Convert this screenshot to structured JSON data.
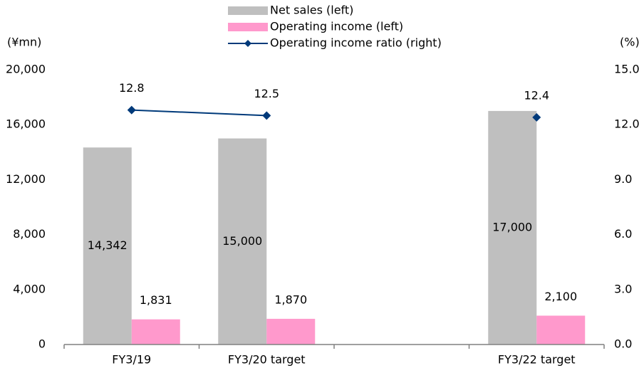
{
  "chart_data": {
    "type": "bar",
    "y_label": "(¥mn)",
    "y2_label": "(%)",
    "categories": [
      "FY3/19",
      "FY3/20 target",
      null,
      "FY3/22 target"
    ],
    "series": [
      {
        "name": "Net sales (left)",
        "type": "bar",
        "color": "#bfbfbf",
        "values": [
          14342,
          15000,
          null,
          17000
        ],
        "value_labels": [
          "14,342",
          "15,000",
          null,
          "17,000"
        ]
      },
      {
        "name": "Operating income (left)",
        "type": "bar",
        "color": "#ff99cc",
        "values": [
          1831,
          1870,
          null,
          2100
        ],
        "value_labels": [
          "1,831",
          "1,870",
          null,
          "2,100"
        ]
      },
      {
        "name": "Operating income ratio (right)",
        "type": "line",
        "axis": "y2",
        "color": "#003a7a",
        "values": [
          12.8,
          12.5,
          null,
          12.4
        ]
      }
    ],
    "ylim": [
      0,
      20000
    ],
    "yticks": [
      0,
      {
        "value": 4000,
        "label": "4,000"
      },
      {
        "value": 8000,
        "label": "8,000"
      },
      {
        "value": 12000,
        "label": "12,000"
      },
      {
        "value": 16000,
        "label": "16,000"
      },
      {
        "value": 20000,
        "label": "20,000"
      }
    ],
    "y2lim": [
      0,
      15
    ],
    "y2ticks": [
      {
        "value": 0,
        "label": "0.0"
      },
      {
        "value": 3,
        "label": "3.0"
      },
      {
        "value": 6,
        "label": "6.0"
      },
      {
        "value": 9,
        "label": "9.0"
      },
      {
        "value": 12,
        "label": "12.0"
      },
      {
        "value": 15,
        "label": "15.0"
      }
    ],
    "grid": false,
    "legend": "top"
  }
}
